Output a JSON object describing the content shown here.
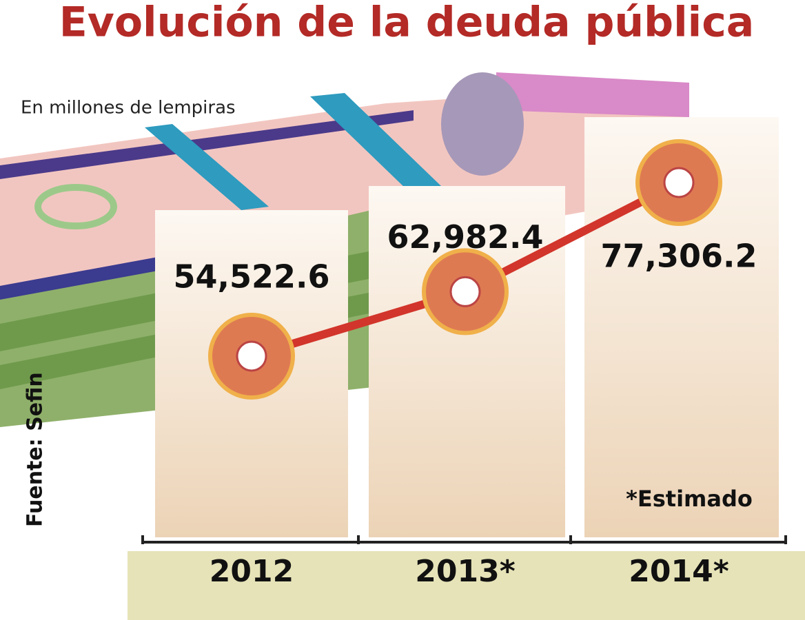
{
  "chart_data": {
    "type": "line",
    "title": "Evolución de la deuda pública",
    "subtitle": "En millones de lempiras",
    "source": "Fuente: Sefin",
    "note": "*Estimado",
    "categories": [
      "2012",
      "2013*",
      "2014*"
    ],
    "values": [
      54522.6,
      62982.4,
      77306.2
    ],
    "value_labels": [
      "54,522.6",
      "62,982.4",
      "77,306.2"
    ],
    "color": "#d2352b"
  }
}
